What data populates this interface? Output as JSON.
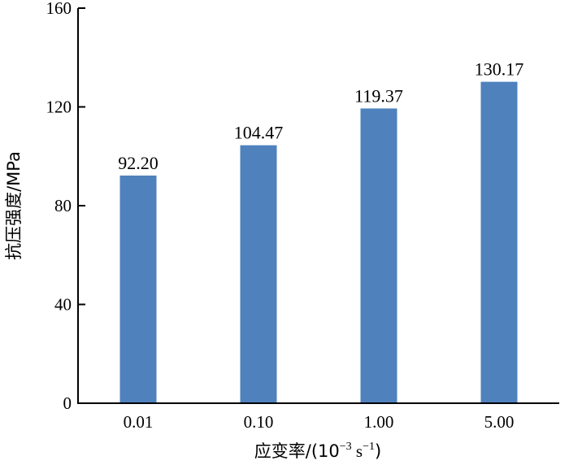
{
  "chart_data": {
    "type": "bar",
    "categories": [
      "0.01",
      "0.10",
      "1.00",
      "5.00"
    ],
    "values": [
      92.2,
      104.47,
      119.37,
      130.17
    ],
    "data_labels": [
      "92.20",
      "104.47",
      "119.37",
      "130.17"
    ],
    "ylabel": "抗压强度/MPa",
    "xlabel_parts": {
      "prefix": "应变率/(10",
      "sup1": "−3",
      "middle": " s",
      "sup2": "−1",
      "suffix": ")"
    },
    "ylim": [
      0,
      160
    ],
    "yticks": [
      0,
      40,
      80,
      120,
      160
    ],
    "ytick_labels": [
      "0",
      "40",
      "80",
      "120",
      "160"
    ],
    "bar_color": "#4f81bd",
    "grid": false,
    "legend": "none"
  }
}
